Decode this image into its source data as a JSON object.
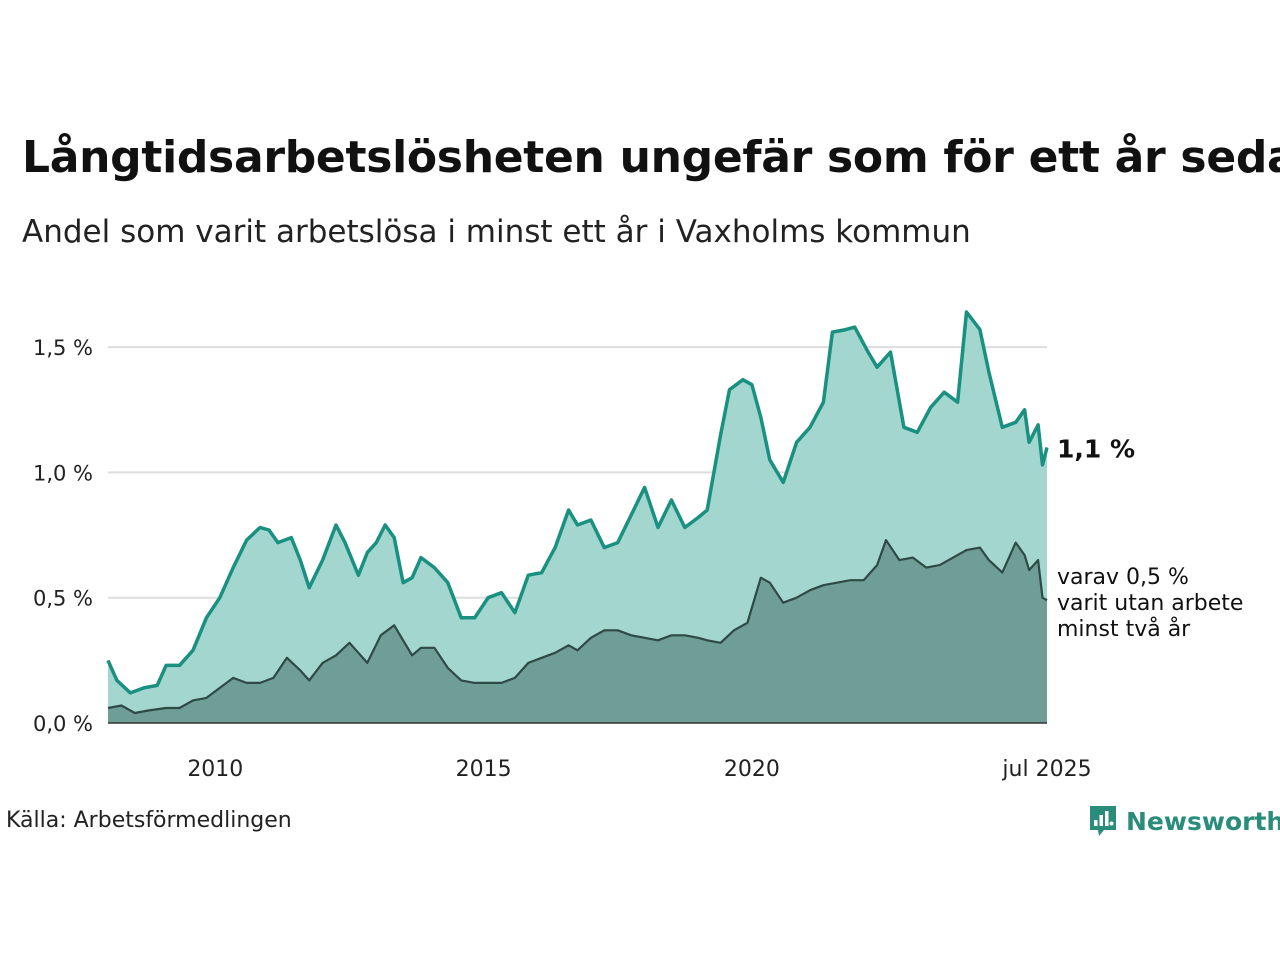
{
  "title": "Långtidsarbetslösheten ungefär som för ett år sedan",
  "subtitle": "Andel som varit arbetslösa i minst ett år i Vaxholms kommun",
  "source": "Källa: Arbetsförmedlingen",
  "brand": "Newsworthy",
  "colors": {
    "total_line": "#1a9080",
    "total_fill": "#a2d6cf",
    "sub_line": "#2f4a44",
    "sub_fill": "#6f9e96",
    "grid": "#dddddd",
    "brand": "#2a8c7a"
  },
  "chart_data": {
    "type": "area",
    "x_start": "2008-01",
    "x_end": "2025-07",
    "ylim": [
      0,
      1.7
    ],
    "yticks": [
      {
        "value": 0.0,
        "label": "0,0 %"
      },
      {
        "value": 0.5,
        "label": "0,5 %"
      },
      {
        "value": 1.0,
        "label": "1,0 %"
      },
      {
        "value": 1.5,
        "label": "1,5 %"
      }
    ],
    "xticks": [
      {
        "date": "2010-01",
        "label": "2010"
      },
      {
        "date": "2015-01",
        "label": "2015"
      },
      {
        "date": "2020-01",
        "label": "2020"
      },
      {
        "date": "2025-07",
        "label": "jul 2025"
      }
    ],
    "grid": true,
    "series": [
      {
        "key": "total",
        "end_label": "1,1 %",
        "points": [
          [
            "2008-01",
            0.25
          ],
          [
            "2008-03",
            0.17
          ],
          [
            "2008-06",
            0.12
          ],
          [
            "2008-09",
            0.14
          ],
          [
            "2008-12",
            0.15
          ],
          [
            "2009-02",
            0.23
          ],
          [
            "2009-05",
            0.23
          ],
          [
            "2009-08",
            0.29
          ],
          [
            "2009-11",
            0.42
          ],
          [
            "2010-02",
            0.5
          ],
          [
            "2010-05",
            0.62
          ],
          [
            "2010-08",
            0.73
          ],
          [
            "2010-11",
            0.78
          ],
          [
            "2011-01",
            0.77
          ],
          [
            "2011-03",
            0.72
          ],
          [
            "2011-06",
            0.74
          ],
          [
            "2011-08",
            0.65
          ],
          [
            "2011-10",
            0.54
          ],
          [
            "2012-01",
            0.65
          ],
          [
            "2012-04",
            0.79
          ],
          [
            "2012-06",
            0.72
          ],
          [
            "2012-09",
            0.59
          ],
          [
            "2012-11",
            0.68
          ],
          [
            "2013-01",
            0.72
          ],
          [
            "2013-03",
            0.79
          ],
          [
            "2013-05",
            0.74
          ],
          [
            "2013-07",
            0.56
          ],
          [
            "2013-09",
            0.58
          ],
          [
            "2013-11",
            0.66
          ],
          [
            "2014-02",
            0.62
          ],
          [
            "2014-05",
            0.56
          ],
          [
            "2014-08",
            0.42
          ],
          [
            "2014-11",
            0.42
          ],
          [
            "2015-02",
            0.5
          ],
          [
            "2015-05",
            0.52
          ],
          [
            "2015-08",
            0.44
          ],
          [
            "2015-11",
            0.59
          ],
          [
            "2016-02",
            0.6
          ],
          [
            "2016-05",
            0.7
          ],
          [
            "2016-08",
            0.85
          ],
          [
            "2016-10",
            0.79
          ],
          [
            "2017-01",
            0.81
          ],
          [
            "2017-04",
            0.7
          ],
          [
            "2017-07",
            0.72
          ],
          [
            "2017-10",
            0.83
          ],
          [
            "2018-01",
            0.94
          ],
          [
            "2018-04",
            0.78
          ],
          [
            "2018-07",
            0.89
          ],
          [
            "2018-10",
            0.78
          ],
          [
            "2019-01",
            0.82
          ],
          [
            "2019-03",
            0.85
          ],
          [
            "2019-06",
            1.15
          ],
          [
            "2019-08",
            1.33
          ],
          [
            "2019-11",
            1.37
          ],
          [
            "2020-01",
            1.35
          ],
          [
            "2020-03",
            1.22
          ],
          [
            "2020-05",
            1.05
          ],
          [
            "2020-08",
            0.96
          ],
          [
            "2020-11",
            1.12
          ],
          [
            "2021-02",
            1.18
          ],
          [
            "2021-05",
            1.28
          ],
          [
            "2021-07",
            1.56
          ],
          [
            "2021-10",
            1.57
          ],
          [
            "2021-12",
            1.58
          ],
          [
            "2022-03",
            1.48
          ],
          [
            "2022-05",
            1.42
          ],
          [
            "2022-08",
            1.48
          ],
          [
            "2022-11",
            1.18
          ],
          [
            "2023-02",
            1.16
          ],
          [
            "2023-05",
            1.26
          ],
          [
            "2023-08",
            1.32
          ],
          [
            "2023-11",
            1.28
          ],
          [
            "2024-01",
            1.64
          ],
          [
            "2024-04",
            1.57
          ],
          [
            "2024-06",
            1.4
          ],
          [
            "2024-09",
            1.18
          ],
          [
            "2024-12",
            1.2
          ],
          [
            "2025-02",
            1.25
          ],
          [
            "2025-03",
            1.12
          ],
          [
            "2025-05",
            1.19
          ],
          [
            "2025-06",
            1.03
          ],
          [
            "2025-07",
            1.1
          ]
        ]
      },
      {
        "key": "sub",
        "end_label": [
          "varav 0,5 %",
          "varit utan arbete",
          "minst två år"
        ],
        "points": [
          [
            "2008-01",
            0.06
          ],
          [
            "2008-04",
            0.07
          ],
          [
            "2008-07",
            0.04
          ],
          [
            "2008-10",
            0.05
          ],
          [
            "2009-02",
            0.06
          ],
          [
            "2009-05",
            0.06
          ],
          [
            "2009-08",
            0.09
          ],
          [
            "2009-11",
            0.1
          ],
          [
            "2010-02",
            0.14
          ],
          [
            "2010-05",
            0.18
          ],
          [
            "2010-08",
            0.16
          ],
          [
            "2010-11",
            0.16
          ],
          [
            "2011-02",
            0.18
          ],
          [
            "2011-05",
            0.26
          ],
          [
            "2011-08",
            0.21
          ],
          [
            "2011-10",
            0.17
          ],
          [
            "2012-01",
            0.24
          ],
          [
            "2012-04",
            0.27
          ],
          [
            "2012-07",
            0.32
          ],
          [
            "2012-09",
            0.28
          ],
          [
            "2012-11",
            0.24
          ],
          [
            "2013-02",
            0.35
          ],
          [
            "2013-05",
            0.39
          ],
          [
            "2013-07",
            0.33
          ],
          [
            "2013-09",
            0.27
          ],
          [
            "2013-11",
            0.3
          ],
          [
            "2014-02",
            0.3
          ],
          [
            "2014-05",
            0.22
          ],
          [
            "2014-08",
            0.17
          ],
          [
            "2014-11",
            0.16
          ],
          [
            "2015-02",
            0.16
          ],
          [
            "2015-05",
            0.16
          ],
          [
            "2015-08",
            0.18
          ],
          [
            "2015-11",
            0.24
          ],
          [
            "2016-02",
            0.26
          ],
          [
            "2016-05",
            0.28
          ],
          [
            "2016-08",
            0.31
          ],
          [
            "2016-10",
            0.29
          ],
          [
            "2017-01",
            0.34
          ],
          [
            "2017-04",
            0.37
          ],
          [
            "2017-07",
            0.37
          ],
          [
            "2017-10",
            0.35
          ],
          [
            "2018-01",
            0.34
          ],
          [
            "2018-04",
            0.33
          ],
          [
            "2018-07",
            0.35
          ],
          [
            "2018-10",
            0.35
          ],
          [
            "2019-01",
            0.34
          ],
          [
            "2019-03",
            0.33
          ],
          [
            "2019-06",
            0.32
          ],
          [
            "2019-09",
            0.37
          ],
          [
            "2019-12",
            0.4
          ],
          [
            "2020-03",
            0.58
          ],
          [
            "2020-05",
            0.56
          ],
          [
            "2020-08",
            0.48
          ],
          [
            "2020-11",
            0.5
          ],
          [
            "2021-02",
            0.53
          ],
          [
            "2021-05",
            0.55
          ],
          [
            "2021-08",
            0.56
          ],
          [
            "2021-11",
            0.57
          ],
          [
            "2022-02",
            0.57
          ],
          [
            "2022-05",
            0.63
          ],
          [
            "2022-07",
            0.73
          ],
          [
            "2022-10",
            0.65
          ],
          [
            "2023-01",
            0.66
          ],
          [
            "2023-04",
            0.62
          ],
          [
            "2023-07",
            0.63
          ],
          [
            "2023-10",
            0.66
          ],
          [
            "2024-01",
            0.69
          ],
          [
            "2024-04",
            0.7
          ],
          [
            "2024-06",
            0.65
          ],
          [
            "2024-09",
            0.6
          ],
          [
            "2024-12",
            0.72
          ],
          [
            "2025-02",
            0.67
          ],
          [
            "2025-03",
            0.61
          ],
          [
            "2025-05",
            0.65
          ],
          [
            "2025-06",
            0.5
          ],
          [
            "2025-07",
            0.49
          ]
        ]
      }
    ]
  }
}
